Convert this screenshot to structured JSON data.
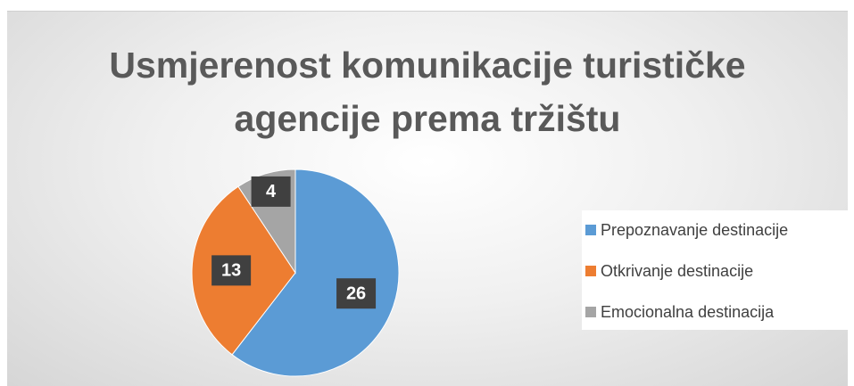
{
  "chart_data": {
    "type": "pie",
    "title": "Usmjerenost komunikacije turističke agencije prema tržištu",
    "categories": [
      "Prepoznavanje destinacije",
      "Otkrivanje destinacije",
      "Emocionalna destinacija"
    ],
    "values": [
      26,
      13,
      4
    ],
    "colors": [
      "#5b9bd5",
      "#ed7d31",
      "#a5a5a5"
    ],
    "legend": "right"
  }
}
